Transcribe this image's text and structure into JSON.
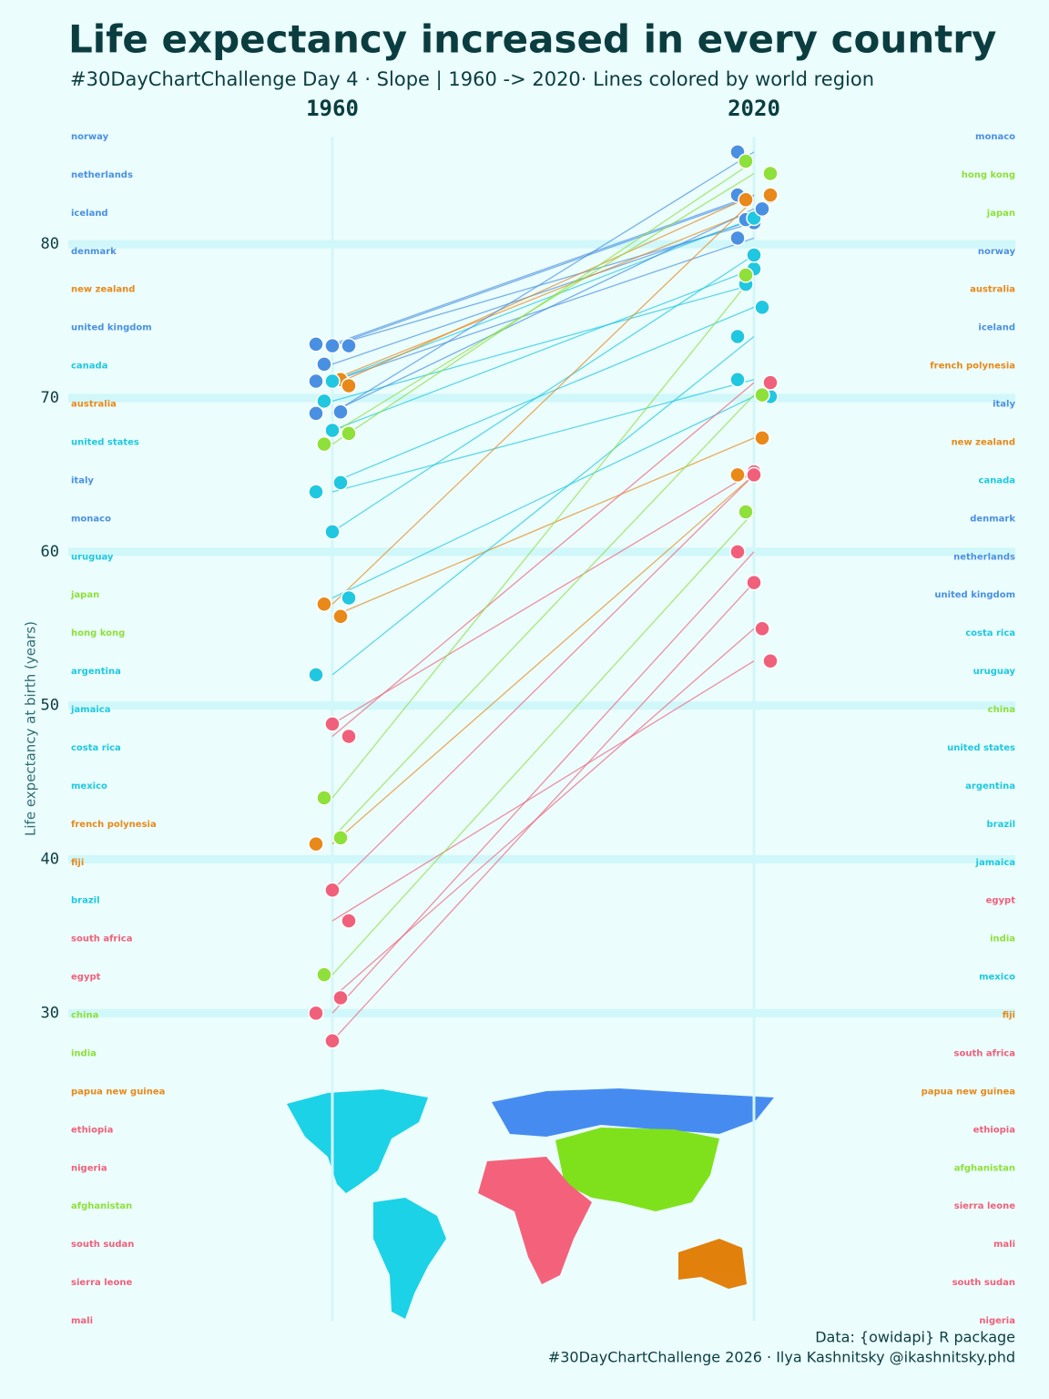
{
  "chart_data": {
    "type": "slope",
    "title": "Life  expectancy increased  in  every  country",
    "subtitle": "#30DayChartChallenge Day 4 ·  Slope |  1960 -> 2020·  Lines  colored  by world  region",
    "y_label": "Life expectancy at birth (years)",
    "ylim": [
      10,
      87
    ],
    "yticks": [
      30,
      40,
      50,
      60,
      70,
      80
    ],
    "grid": true,
    "categories": [
      "norway",
      "netherlands",
      "iceland",
      "denmark",
      "new zealand",
      "united kingdom",
      "canada",
      "australia",
      "united states",
      "italy",
      "monaco",
      "uruguay",
      "japan",
      "hong kong",
      "argentina",
      "jamaica",
      "costa rica",
      "mexico",
      "french polynesia",
      "fiji",
      "brazil",
      "south africa",
      "egypt",
      "china",
      "india",
      "papua new guinea",
      "ethiopia",
      "nigeria",
      "afghanistan",
      "south sudan",
      "sierra leone",
      "mali"
    ],
    "colors": [
      "#4a90e2",
      "#4a90e2",
      "#4a90e2",
      "#4a90e2",
      "#e8891a",
      "#4a90e2",
      "#1fc8e0",
      "#e8891a",
      "#1fc8e0",
      "#4a90e2",
      "#4a90e2",
      "#1fc8e0",
      "#8ee03a",
      "#8ee03a",
      "#1fc8e0",
      "#1fc8e0",
      "#1fc8e0",
      "#1fc8e0",
      "#e8891a",
      "#e8891a",
      "#1fc8e0",
      "#f0607a",
      "#f0607a",
      "#8ee03a",
      "#8ee03a",
      "#e8891a",
      "#f0607a",
      "#f0607a",
      "#8ee03a",
      "#f0607a",
      "#f0607a",
      "#f0607a"
    ],
    "series": [
      {
        "name": "1960",
        "values": [
          73.5,
          73.4,
          73.4,
          72.2,
          71.2,
          71.1,
          71.1,
          70.8,
          69.8,
          69.1,
          69.0,
          67.9,
          67.7,
          67.0,
          64.5,
          63.9,
          61.3,
          57.0,
          56.6,
          55.8,
          52.0,
          48.8,
          48.0,
          44.0,
          41.4,
          41.0,
          38.0,
          36.0,
          32.5,
          31.0,
          30.0,
          28.2
        ]
      },
      {
        "name": "2020",
        "values": [
          83.2,
          81.4,
          83.1,
          81.6,
          82.2,
          80.4,
          81.7,
          83.2,
          77.4,
          82.3,
          86.0,
          78.4,
          84.6,
          85.4,
          75.9,
          71.2,
          79.3,
          70.1,
          82.9,
          67.4,
          74.0,
          65.2,
          71.0,
          78.0,
          70.2,
          65.0,
          65.0,
          52.9,
          62.6,
          55.0,
          60.0,
          58.0
        ]
      }
    ],
    "source": "Data: {owidapi} R package",
    "caption": "#30DayChartChallenge 2026 · Ilya Kashnitsky @ikashnitsky.phd"
  }
}
